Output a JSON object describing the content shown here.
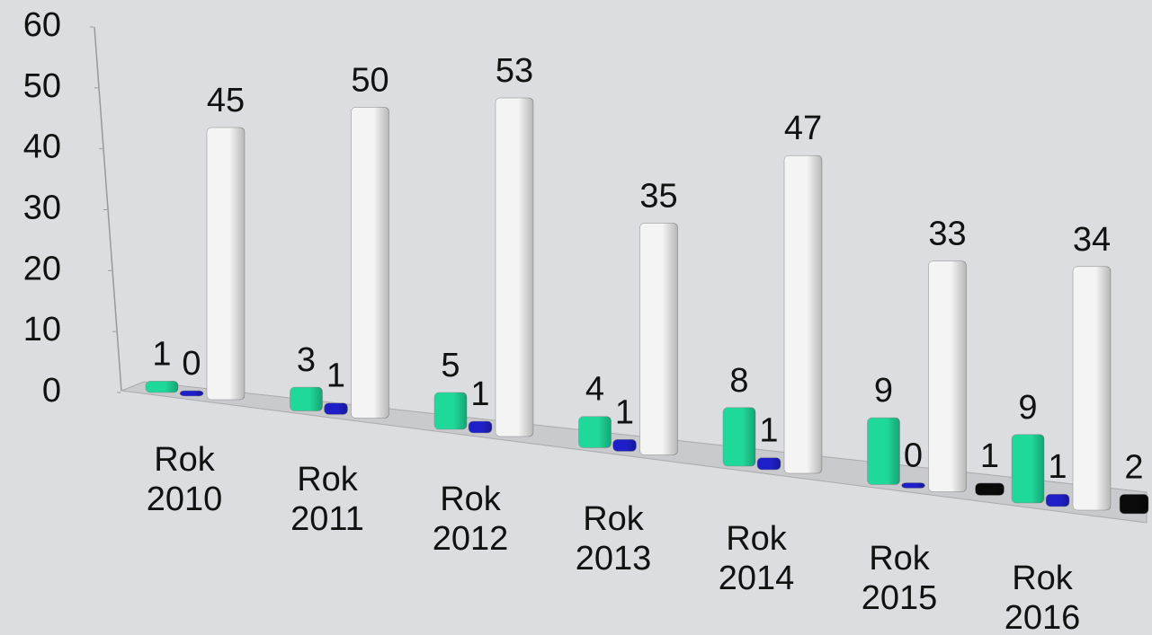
{
  "chart_data": {
    "type": "bar3d",
    "categories": [
      "Rok 2010",
      "Rok 2011",
      "Rok 2012",
      "Rok 2013",
      "Rok 2014",
      "Rok 2015",
      "Rok 2016"
    ],
    "series": [
      {
        "color": "#1fd99a",
        "values": [
          1,
          3,
          5,
          4,
          8,
          9,
          9
        ]
      },
      {
        "color": "#1f1fc8",
        "values": [
          0,
          1,
          1,
          1,
          1,
          0,
          1
        ]
      },
      {
        "color": "#f4f4f4",
        "values": [
          45,
          50,
          53,
          35,
          47,
          33,
          34
        ]
      },
      {
        "color": "#0a0a0a",
        "values": [
          null,
          null,
          null,
          null,
          null,
          1,
          2
        ]
      }
    ],
    "ylim": [
      0,
      60
    ],
    "yticks": [
      0,
      10,
      20,
      30,
      40,
      50,
      60
    ]
  }
}
